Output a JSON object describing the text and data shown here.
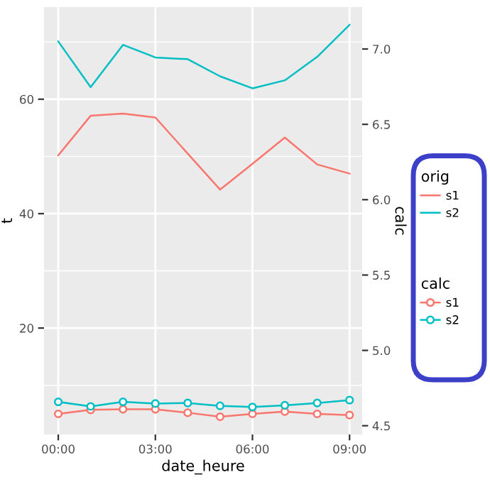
{
  "chart_data": {
    "type": "line",
    "xlabel": "date_heure",
    "ylabel": "t",
    "y2label": "calc",
    "x": [
      0,
      1,
      2,
      3,
      4,
      5,
      6,
      7,
      8,
      9
    ],
    "xlim": [
      -0.44,
      9.39
    ],
    "xticks": [
      {
        "value": 0,
        "label": "00:00"
      },
      {
        "value": 3,
        "label": "03:00"
      },
      {
        "value": 6,
        "label": "06:00"
      },
      {
        "value": 9,
        "label": "09:00"
      }
    ],
    "ylim": [
      1.4,
      76.1
    ],
    "yticks": [
      20,
      40,
      60
    ],
    "y2lim": [
      4.442,
      7.278
    ],
    "y2ticks": [
      4.5,
      {
        "value": 5,
        "label": "5.0"
      },
      5.5,
      {
        "value": 6,
        "label": "6.0"
      },
      6.5,
      {
        "value": 7,
        "label": "7.0"
      }
    ],
    "annotations": [
      "orig",
      "calc"
    ],
    "grid": true,
    "legend": "right",
    "series": [
      {
        "name": "s1",
        "color": "#f8766d",
        "marker": "none",
        "values": [
          50.2,
          57.1,
          57.5,
          56.8,
          50.5,
          44.2,
          48.7,
          53.3,
          48.6,
          47.0
        ]
      },
      {
        "name": "s2",
        "color": "#00bfc4",
        "marker": "none",
        "values": [
          70.1,
          62.1,
          69.5,
          67.3,
          67.0,
          64.0,
          61.9,
          63.3,
          67.4,
          73.0
        ]
      },
      {
        "name": "s1",
        "color": "#f8766d",
        "marker": "circle",
        "values": [
          5.0,
          5.7,
          5.8,
          5.8,
          5.2,
          4.5,
          5.0,
          5.4,
          5.0,
          4.8
        ]
      },
      {
        "name": "s2",
        "color": "#00bfc4",
        "marker": "circle",
        "values": [
          7.1,
          6.3,
          7.1,
          6.8,
          6.9,
          6.4,
          6.2,
          6.5,
          6.9,
          7.4
        ]
      }
    ]
  }
}
